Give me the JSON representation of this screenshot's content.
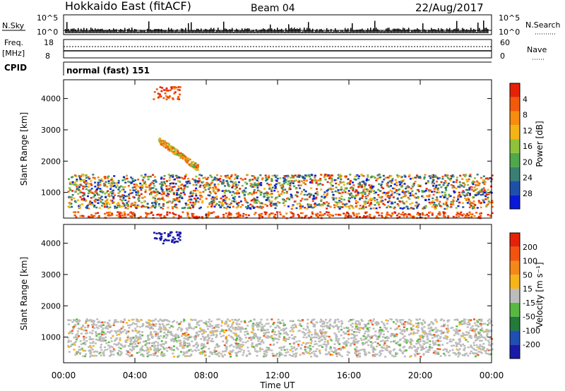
{
  "header": {
    "title": "Hokkaido East (fitACF)",
    "beam": "Beam 04",
    "date": "22/Aug/2017"
  },
  "strips": {
    "nsky_label": "N.Sky",
    "nsky_ticks": [
      "10^5",
      "10^0"
    ],
    "nsearch_label": "N.Search",
    "nsearch_ticks": [
      "10^5",
      "10^0"
    ],
    "freq_label": "Freq.",
    "freq_unit": "[MHz]",
    "freq_ticks": [
      "18",
      "8"
    ],
    "nave_label": "Nave",
    "nave_ticks": [
      "60",
      "0"
    ],
    "cpid_label": "CPID",
    "cpid_value": "normal (fast) 151"
  },
  "chart_data": [
    {
      "type": "heatmap",
      "title": "",
      "ylabel": "Slant Range [km]",
      "yticks": [
        "1000",
        "2000",
        "3000",
        "4000"
      ],
      "ylim": [
        180,
        4600
      ],
      "xlim_hours": [
        0,
        24
      ],
      "colorbar_label": "Power [dB]",
      "colorbar_ticks": [
        "4",
        "8",
        "12",
        "16",
        "20",
        "24",
        "28"
      ],
      "colorbar_colors": [
        "#0a1adb",
        "#1e50a8",
        "#3a7f74",
        "#4fa84a",
        "#8fc23a",
        "#f4b514",
        "#f88d0d",
        "#f25a0a",
        "#e52207"
      ],
      "features": [
        {
          "label": "near-range band",
          "t_start": 0.5,
          "t_end": 24,
          "range_low": 200,
          "range_high": 400,
          "level": "high"
        },
        {
          "label": "main echo band",
          "t_start": 0.2,
          "t_end": 24,
          "range_low": 500,
          "range_high": 1600,
          "level": "mixed"
        },
        {
          "label": "oblique streak",
          "t_start": 5.3,
          "t_end": 7.5,
          "range_low": 1600,
          "range_high": 2600,
          "level": "medium"
        },
        {
          "label": "far echoes",
          "t_start": 5.0,
          "t_end": 6.5,
          "range_low": 4000,
          "range_high": 4400,
          "level": "high"
        }
      ]
    },
    {
      "type": "heatmap",
      "title": "",
      "ylabel": "Slant Range [km]",
      "yticks": [
        "1000",
        "2000",
        "3000",
        "4000"
      ],
      "ylim": [
        180,
        4600
      ],
      "xlim_hours": [
        0,
        24
      ],
      "colorbar_label": "Velocity [m s⁻¹]",
      "colorbar_ticks": [
        "200",
        "100",
        "50",
        "15",
        "-15",
        "-50",
        "-100",
        "-200"
      ],
      "colorbar_colors": [
        "#1a1aa8",
        "#1f4fb0",
        "#237a3a",
        "#58b941",
        "#bcbcbc",
        "#f7b51a",
        "#f4891a",
        "#f25410",
        "#e52207"
      ],
      "features": [
        {
          "label": "ground scatter band",
          "t_start": 0.2,
          "t_end": 24,
          "range_low": 400,
          "range_high": 1600,
          "level": "grey"
        },
        {
          "label": "far echoes",
          "t_start": 5.0,
          "t_end": 6.5,
          "range_low": 4000,
          "range_high": 4400,
          "level": "blue"
        }
      ]
    }
  ],
  "xaxis": {
    "label": "Time UT",
    "ticks": [
      "00:00",
      "04:00",
      "08:00",
      "12:00",
      "16:00",
      "20:00",
      "00:00"
    ]
  }
}
